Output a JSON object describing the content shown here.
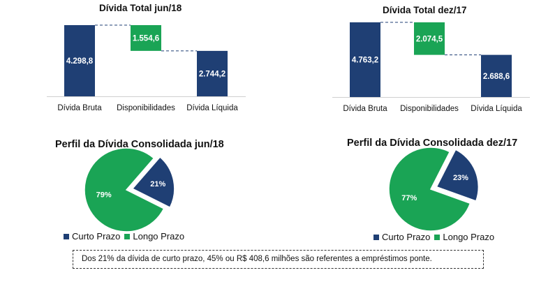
{
  "colors": {
    "navy": "#1f3f74",
    "green": "#1aa455"
  },
  "note": "Dos 21% da dívida de curto prazo, 45% ou R$ 408,6 milhões são referentes a empréstimos ponte.",
  "chart_data": [
    {
      "type": "bar",
      "subtype": "waterfall",
      "title": "Dívida Total jun/18",
      "categories": [
        "Dívida Bruta",
        "Disponibilidades",
        "Dívida Líquida"
      ],
      "values": [
        4298.8,
        -1554.6,
        2744.2
      ],
      "labels": [
        "4.298,8",
        "1.554,6",
        "2.744,2"
      ],
      "colors": [
        "#1f3f74",
        "#1aa455",
        "#1f3f74"
      ]
    },
    {
      "type": "bar",
      "subtype": "waterfall",
      "title": "Dívida Total dez/17",
      "categories": [
        "Dívida Bruta",
        "Disponibilidades",
        "Dívida Líquida"
      ],
      "values": [
        4763.2,
        -2074.5,
        2688.6
      ],
      "labels": [
        "4.763,2",
        "2.074,5",
        "2.688,6"
      ],
      "colors": [
        "#1f3f74",
        "#1aa455",
        "#1f3f74"
      ]
    },
    {
      "type": "pie",
      "title": "Perfil da Dívida Consolidada jun/18",
      "categories": [
        "Curto Prazo",
        "Longo Prazo"
      ],
      "values": [
        21,
        79
      ],
      "labels": [
        "21%",
        "79%"
      ],
      "colors": [
        "#1f3f74",
        "#1aa455"
      ],
      "exploded": "Curto Prazo",
      "legend": "bottom"
    },
    {
      "type": "pie",
      "title": "Perfil da Dívida Consolidada dez/17",
      "categories": [
        "Curto Prazo",
        "Longo Prazo"
      ],
      "values": [
        23,
        77
      ],
      "labels": [
        "23%",
        "77%"
      ],
      "colors": [
        "#1f3f74",
        "#1aa455"
      ],
      "exploded": "Curto Prazo",
      "legend": "bottom"
    }
  ]
}
